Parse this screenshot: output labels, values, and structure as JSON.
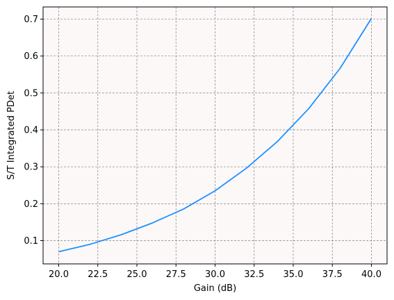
{
  "chart_data": {
    "type": "line",
    "title": "",
    "xlabel": "Gain (dB)",
    "ylabel": "S/T Integrated PDet",
    "xlim": [
      19.0,
      41.0
    ],
    "ylim": [
      0.037,
      0.733
    ],
    "x_ticks": [
      20.0,
      22.5,
      25.0,
      27.5,
      30.0,
      32.5,
      35.0,
      37.5,
      40.0
    ],
    "x_tick_labels": [
      "20.0",
      "22.5",
      "25.0",
      "27.5",
      "30.0",
      "32.5",
      "35.0",
      "37.5",
      "40.0"
    ],
    "y_ticks": [
      0.1,
      0.2,
      0.3,
      0.4,
      0.5,
      0.6,
      0.7
    ],
    "y_tick_labels": [
      "0.1",
      "0.2",
      "0.3",
      "0.4",
      "0.5",
      "0.6",
      "0.7"
    ],
    "grid": true,
    "legend": "none",
    "plot_background": "#fcf8f8",
    "grid_color": "#808080",
    "series": [
      {
        "color": "#1e90ff",
        "x": [
          20,
          22,
          24,
          26,
          28,
          30,
          32,
          34,
          36,
          38,
          40
        ],
        "y": [
          0.07,
          0.09,
          0.116,
          0.148,
          0.186,
          0.235,
          0.296,
          0.369,
          0.458,
          0.567,
          0.702
        ]
      }
    ]
  }
}
